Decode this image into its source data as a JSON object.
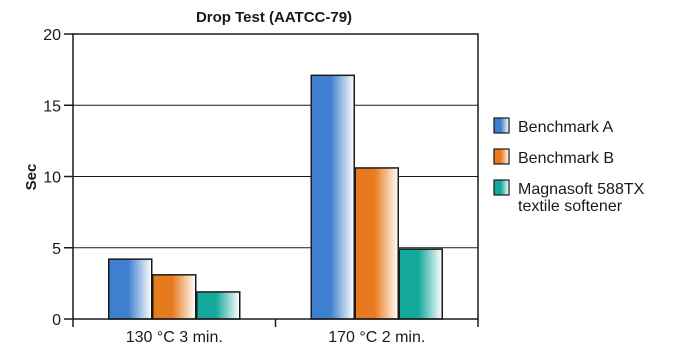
{
  "chart_data": {
    "type": "bar",
    "title": "Drop Test (AATCC-79)",
    "xlabel": "",
    "ylabel": "Sec",
    "ylim": [
      0,
      20
    ],
    "yticks": [
      0,
      5,
      10,
      15,
      20
    ],
    "grid": true,
    "legend_position": "right",
    "categories": [
      "130 °C 3 min.",
      "170 °C 2 min."
    ],
    "series": [
      {
        "name": "Benchmark A",
        "values": [
          4.2,
          17.1
        ],
        "color": "#3f7fcf"
      },
      {
        "name": "Benchmark B",
        "values": [
          3.1,
          10.6
        ],
        "color": "#e87a1e"
      },
      {
        "name": "Magnasoft 588TX textile softener",
        "values": [
          1.9,
          4.9
        ],
        "color": "#14a89a"
      }
    ],
    "legend_labels": [
      [
        "Benchmark A"
      ],
      [
        "Benchmark B"
      ],
      [
        "Magnasoft 588TX",
        "textile softener"
      ]
    ]
  }
}
